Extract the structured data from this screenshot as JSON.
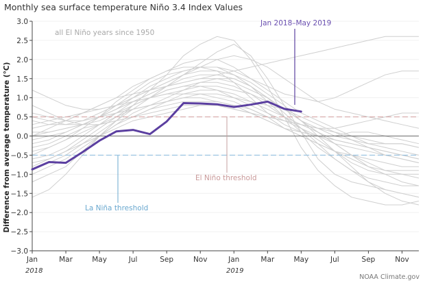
{
  "chart_data": {
    "type": "line",
    "title": "Monthly sea surface temperature Niño 3.4 Index Values",
    "ylabel": "Difference from average temperature (°C)",
    "xlabel": "",
    "ylim": [
      -3.0,
      3.0
    ],
    "yticks": [
      "3.0",
      "2.5",
      "2.0",
      "1.5",
      "1.0",
      "0.5",
      "0.0",
      "−0.5",
      "−1.0",
      "−1.5",
      "−2.0",
      "−2.5",
      "−3.0"
    ],
    "xticks": [
      "Jan",
      "Mar",
      "May",
      "Jul",
      "Sep",
      "Nov",
      "Jan",
      "Mar",
      "May",
      "Jul",
      "Sep",
      "Nov"
    ],
    "year_labels": [
      "2018",
      "2019"
    ],
    "el_nino_threshold": 0.5,
    "la_nina_threshold": -0.5,
    "annotations": {
      "background": "all El Niño years since 1950",
      "highlight": "Jan 2018–May 2019",
      "el_nino": "El Niño threshold",
      "la_nina": "La Niña threshold"
    },
    "highlight_series": {
      "name": "Jan 2018–May 2019",
      "color": "#5b3fa0",
      "values": [
        -0.87,
        -0.68,
        -0.7,
        -0.42,
        -0.12,
        0.12,
        0.16,
        0.05,
        0.38,
        0.86,
        0.85,
        0.83,
        0.76,
        0.82,
        0.9,
        0.71,
        0.64
      ]
    },
    "background_series_color": "#cfcfcf",
    "background_series": [
      [
        -0.9,
        -0.7,
        -0.5,
        -0.2,
        0.1,
        0.4,
        0.7,
        1.0,
        1.3,
        1.6,
        1.9,
        2.2,
        2.4,
        2.1,
        1.5,
        0.8,
        0.1,
        -0.6,
        -1.0,
        -1.2,
        -1.3,
        -1.4,
        -1.5,
        -1.6
      ],
      [
        -1.6,
        -1.4,
        -1.0,
        -0.5,
        0.0,
        0.4,
        0.8,
        1.2,
        1.6,
        2.1,
        2.4,
        2.6,
        2.5,
        2.0,
        1.3,
        0.5,
        -0.3,
        -0.9,
        -1.3,
        -1.6,
        -1.7,
        -1.8,
        -1.8,
        -1.7
      ],
      [
        0.5,
        0.4,
        0.3,
        0.3,
        0.4,
        0.6,
        0.8,
        1.0,
        1.2,
        1.3,
        1.3,
        1.2,
        1.0,
        0.8,
        0.6,
        0.4,
        0.2,
        0.0,
        -0.2,
        -0.3,
        -0.4,
        -0.5,
        -0.6,
        -0.7
      ],
      [
        -0.5,
        -0.3,
        -0.1,
        0.1,
        0.3,
        0.5,
        0.7,
        0.8,
        0.9,
        1.0,
        1.0,
        0.9,
        0.8,
        0.6,
        0.4,
        0.2,
        0.1,
        0.0,
        -0.1,
        -0.2,
        -0.3,
        -0.4,
        -0.5,
        -0.6
      ],
      [
        0.2,
        0.3,
        0.4,
        0.6,
        0.8,
        1.0,
        1.3,
        1.5,
        1.7,
        1.8,
        1.8,
        1.7,
        1.4,
        1.0,
        0.6,
        0.3,
        0.1,
        0.0,
        0.0,
        0.1,
        0.1,
        0.0,
        -0.1,
        -0.2
      ],
      [
        -1.2,
        -1.0,
        -0.8,
        -0.4,
        0.0,
        0.3,
        0.6,
        0.8,
        1.0,
        1.2,
        1.4,
        1.5,
        1.5,
        1.3,
        1.0,
        0.6,
        0.2,
        -0.2,
        -0.6,
        -0.9,
        -1.2,
        -1.4,
        -1.5,
        -1.6
      ],
      [
        0.0,
        0.1,
        0.2,
        0.3,
        0.5,
        0.7,
        0.9,
        1.1,
        1.3,
        1.5,
        1.6,
        1.6,
        1.5,
        1.3,
        1.0,
        0.7,
        0.4,
        0.2,
        0.0,
        -0.1,
        -0.2,
        -0.2,
        -0.2,
        -0.3
      ],
      [
        -0.4,
        -0.3,
        -0.1,
        0.2,
        0.5,
        0.9,
        1.2,
        1.5,
        1.7,
        1.9,
        2.0,
        2.0,
        1.8,
        1.5,
        1.2,
        0.9,
        0.6,
        0.4,
        0.2,
        0.0,
        -0.2,
        -0.3,
        -0.4,
        -0.5
      ],
      [
        0.6,
        0.5,
        0.4,
        0.4,
        0.5,
        0.6,
        0.7,
        0.8,
        0.9,
        1.0,
        1.1,
        1.1,
        1.0,
        0.9,
        0.8,
        0.7,
        0.5,
        0.3,
        0.1,
        -0.1,
        -0.3,
        -0.5,
        -0.6,
        -0.7
      ],
      [
        -0.3,
        -0.2,
        0.0,
        0.2,
        0.3,
        0.4,
        0.5,
        0.6,
        0.7,
        0.8,
        0.8,
        0.8,
        0.7,
        0.6,
        0.5,
        0.4,
        0.3,
        0.2,
        0.2,
        0.3,
        0.4,
        0.5,
        0.6,
        0.6
      ],
      [
        0.8,
        0.6,
        0.4,
        0.3,
        0.3,
        0.4,
        0.5,
        0.7,
        0.8,
        0.9,
        0.9,
        0.9,
        0.8,
        0.7,
        0.5,
        0.4,
        0.3,
        0.2,
        0.1,
        0.0,
        -0.1,
        -0.2,
        -0.2,
        -0.3
      ],
      [
        -0.7,
        -0.6,
        -0.4,
        -0.1,
        0.2,
        0.5,
        0.8,
        1.0,
        1.2,
        1.3,
        1.4,
        1.4,
        1.3,
        1.1,
        0.8,
        0.5,
        0.2,
        -0.1,
        -0.4,
        -0.7,
        -0.9,
        -1.0,
        -1.0,
        -1.0
      ],
      [
        0.1,
        0.1,
        0.2,
        0.3,
        0.5,
        0.8,
        1.1,
        1.4,
        1.6,
        1.7,
        1.8,
        1.8,
        1.7,
        1.5,
        1.3,
        1.1,
        1.0,
        0.9,
        1.0,
        1.2,
        1.4,
        1.6,
        1.7,
        1.7
      ],
      [
        -0.2,
        -0.1,
        0.1,
        0.3,
        0.5,
        0.7,
        0.9,
        1.0,
        1.1,
        1.1,
        1.1,
        1.0,
        0.9,
        0.7,
        0.5,
        0.2,
        0.0,
        -0.2,
        -0.4,
        -0.5,
        -0.6,
        -0.7,
        -0.8,
        -0.8
      ],
      [
        0.3,
        0.4,
        0.5,
        0.6,
        0.7,
        0.8,
        1.0,
        1.2,
        1.4,
        1.6,
        1.7,
        1.7,
        1.6,
        1.4,
        1.1,
        0.8,
        0.4,
        0.0,
        -0.4,
        -0.8,
        -1.2,
        -1.5,
        -1.7,
        -1.8
      ],
      [
        -0.6,
        -0.5,
        -0.3,
        0.0,
        0.3,
        0.6,
        0.9,
        1.1,
        1.3,
        1.4,
        1.5,
        1.5,
        1.4,
        1.2,
        1.0,
        0.7,
        0.4,
        0.1,
        -0.2,
        -0.5,
        -0.8,
        -1.0,
        -1.2,
        -1.3
      ],
      [
        1.2,
        1.0,
        0.8,
        0.7,
        0.7,
        0.8,
        0.9,
        1.0,
        1.1,
        1.2,
        1.3,
        1.3,
        1.2,
        1.1,
        0.9,
        0.7,
        0.4,
        0.1,
        -0.2,
        -0.5,
        -0.7,
        -0.9,
        -1.0,
        -1.1
      ],
      [
        -1.0,
        -0.8,
        -0.6,
        -0.3,
        0.0,
        0.3,
        0.5,
        0.7,
        0.9,
        1.1,
        1.2,
        1.2,
        1.1,
        0.9,
        0.7,
        0.5,
        0.3,
        0.1,
        -0.1,
        -0.2,
        -0.3,
        -0.4,
        -0.5,
        -0.6
      ],
      [
        0.4,
        0.3,
        0.3,
        0.4,
        0.6,
        0.8,
        1.0,
        1.2,
        1.4,
        1.6,
        1.8,
        2.0,
        2.1,
        2.0,
        1.8,
        1.5,
        1.2,
        0.9,
        0.7,
        0.6,
        0.5,
        0.4,
        0.3,
        0.2
      ],
      [
        -0.1,
        0.0,
        0.1,
        0.3,
        0.5,
        0.7,
        1.0,
        1.3,
        1.5,
        1.7,
        1.8,
        1.8,
        1.6,
        1.3,
        0.9,
        0.5,
        0.1,
        -0.3,
        -0.6,
        -0.9,
        -1.1,
        -1.2,
        -1.3,
        -1.3
      ],
      [
        0.0,
        0.2,
        0.4,
        0.6,
        0.8,
        1.0,
        1.1,
        1.2,
        1.3,
        1.4,
        1.5,
        1.6,
        1.7,
        1.8,
        1.9,
        2.0,
        2.1,
        2.2,
        2.3,
        2.4,
        2.5,
        2.6,
        2.6,
        2.6
      ],
      [
        -0.8,
        -0.6,
        -0.4,
        -0.2,
        0.0,
        0.2,
        0.4,
        0.5,
        0.6,
        0.7,
        0.8,
        0.8,
        0.7,
        0.6,
        0.4,
        0.2,
        0.0,
        -0.2,
        -0.4,
        -0.6,
        -0.8,
        -0.9,
        -0.9,
        -0.9
      ]
    ],
    "credit": "NOAA Climate.gov"
  }
}
